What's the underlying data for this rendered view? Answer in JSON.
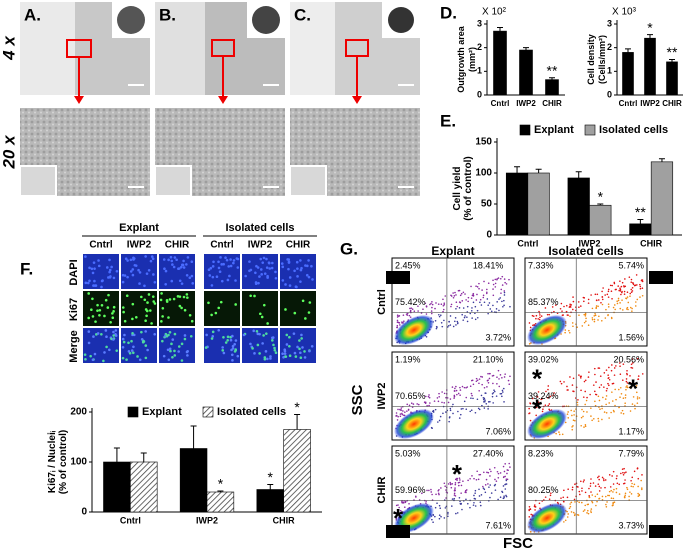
{
  "panels": {
    "A": "A.",
    "B": "B.",
    "C": "C.",
    "D": "D.",
    "E": "E.",
    "F": "F.",
    "G": "G."
  },
  "magnifications": [
    "4 x",
    "20 x"
  ],
  "f_images": {
    "groups": [
      "Explant",
      "Isolated cells"
    ],
    "columns": [
      "Cntrl",
      "IWP2",
      "CHIR"
    ],
    "rows": [
      "DAPI",
      "Ki67",
      "Merge"
    ]
  },
  "flow": {
    "columns": [
      "Explant",
      "Isolated cells"
    ],
    "rows": [
      "Cntrl",
      "IWP2",
      "CHIR"
    ],
    "ylabel": "SSC",
    "xlabel": "FSC",
    "quadrants": [
      "ULQ",
      "URQ",
      "LLQ",
      "LRQ"
    ],
    "plots": [
      [
        {
          "ul": "2.45%",
          "ur": "18.41%",
          "ll": "75.42%",
          "lr": "3.72%",
          "stars": {}
        },
        {
          "ul": "7.33%",
          "ur": "5.74%",
          "ll": "85.37%",
          "lr": "1.56%",
          "stars": {}
        }
      ],
      [
        {
          "ul": "1.19%",
          "ur": "21.10%",
          "ll": "70.65%",
          "lr": "7.06%",
          "stars": {}
        },
        {
          "ul": "39.02%",
          "ur": "20.56%",
          "ll": "39.24%",
          "lr": "1.17%",
          "stars": {
            "ul": "*",
            "ur": "*",
            "ll": "*"
          }
        }
      ],
      [
        {
          "ul": "5.03%",
          "ur": "27.40%",
          "ll": "59.96%",
          "lr": "7.61%",
          "stars": {
            "ur": "*",
            "ll": "*"
          }
        },
        {
          "ul": "8.23%",
          "ur": "7.79%",
          "ll": "80.25%",
          "lr": "3.73%",
          "stars": {}
        }
      ]
    ]
  },
  "chart_data": [
    {
      "type": "bar",
      "multiplier": "X 10²",
      "ylabel": [
        "Outgrowth area",
        "(mm²)"
      ],
      "categories": [
        "Cntrl",
        "IWP2",
        "CHIR"
      ],
      "ylim": [
        0,
        3
      ],
      "yticks": [
        0,
        1,
        2,
        3
      ],
      "series": [
        {
          "color": "#000000",
          "values": [
            2.7,
            1.9,
            0.65
          ],
          "errors": [
            0.15,
            0.1,
            0.08
          ],
          "markers": [
            null,
            null,
            "**"
          ]
        }
      ]
    },
    {
      "type": "bar",
      "multiplier": "X 10³",
      "ylabel": [
        "Cell density",
        "(Cells/mm²)"
      ],
      "categories": [
        "Cntrl",
        "IWP2",
        "CHIR"
      ],
      "ylim": [
        0,
        3
      ],
      "yticks": [
        0,
        1,
        2,
        3
      ],
      "series": [
        {
          "color": "#000000",
          "values": [
            1.8,
            2.4,
            1.4
          ],
          "errors": [
            0.15,
            0.15,
            0.1
          ],
          "markers": [
            null,
            "*",
            "**"
          ]
        }
      ]
    },
    {
      "type": "bar",
      "ylabel": [
        "Cell yield",
        "(% of control)"
      ],
      "categories": [
        "Cntrl",
        "IWP2",
        "CHIR"
      ],
      "ylim": [
        0,
        150
      ],
      "yticks": [
        0,
        50,
        100,
        150
      ],
      "series": [
        {
          "name": "Explant",
          "color": "#000000",
          "values": [
            100,
            92,
            18
          ],
          "errors": [
            10,
            10,
            7
          ],
          "markers": [
            null,
            null,
            "**"
          ]
        },
        {
          "name": "Isolated cells",
          "color": "#a0a0a0",
          "values": [
            100,
            48,
            118
          ],
          "errors": [
            6,
            2,
            5
          ],
          "markers": [
            null,
            "*",
            null
          ]
        }
      ]
    },
    {
      "type": "bar",
      "ylabel": [
        "Ki67ᵢ / Nucleiᵢ",
        "(% of control)"
      ],
      "categories": [
        "Cntrl",
        "IWP2",
        "CHIR"
      ],
      "ylim": [
        0,
        200
      ],
      "yticks": [
        0,
        100,
        200
      ],
      "series": [
        {
          "name": "Explant",
          "color": "#000000",
          "values": [
            100,
            127,
            45
          ],
          "errors": [
            28,
            45,
            10
          ],
          "markers": [
            null,
            null,
            "*"
          ]
        },
        {
          "name": "Isolated cells",
          "color": "#ffffff",
          "hatch": true,
          "values": [
            100,
            40,
            165
          ],
          "errors": [
            18,
            2,
            30
          ],
          "markers": [
            null,
            "*",
            "*"
          ]
        }
      ]
    }
  ]
}
